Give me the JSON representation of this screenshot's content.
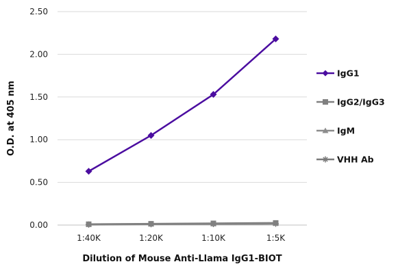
{
  "chart_data": {
    "type": "line",
    "title": "",
    "xlabel": "Dilution of Mouse Anti-Llama IgG1-BIOT",
    "ylabel": "O.D. at 405 nm",
    "categories": [
      "1:40K",
      "1:20K",
      "1:10K",
      "1:5K"
    ],
    "ylim": [
      0,
      2.5
    ],
    "yticks": [
      0,
      0.5,
      1.0,
      1.5,
      2.0,
      2.5
    ],
    "ytick_labels": [
      "0.00",
      "0.50",
      "1.00",
      "1.50",
      "2.00",
      "2.50"
    ],
    "grid": "horizontal",
    "legend_position": "right",
    "series": [
      {
        "name": "IgG1",
        "values": [
          0.63,
          1.05,
          1.53,
          2.18
        ],
        "color": "#4B0DA0",
        "marker": "diamond"
      },
      {
        "name": "IgG2/IgG3",
        "values": [
          0.01,
          0.015,
          0.02,
          0.025
        ],
        "color": "#808080",
        "marker": "square"
      },
      {
        "name": "IgM",
        "values": [
          0.01,
          0.012,
          0.015,
          0.02
        ],
        "color": "#8C8C8C",
        "marker": "triangle"
      },
      {
        "name": "VHH Ab",
        "values": [
          0.005,
          0.01,
          0.012,
          0.015
        ],
        "color": "#7A7A7A",
        "marker": "asterisk"
      }
    ]
  }
}
